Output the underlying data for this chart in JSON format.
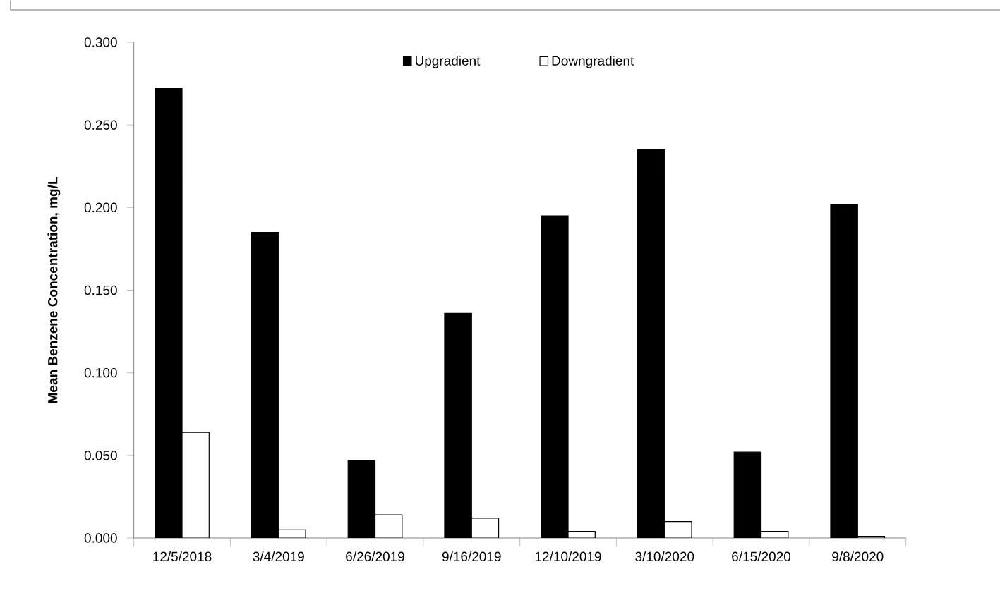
{
  "chart_data": {
    "type": "bar",
    "ylabel": "Mean Benzene Concentration, mg/L",
    "categories": [
      "12/5/2018",
      "3/4/2019",
      "6/26/2019",
      "9/16/2019",
      "12/10/2019",
      "3/10/2020",
      "6/15/2020",
      "9/8/2020"
    ],
    "series": [
      {
        "name": "Upgradient",
        "color": "#000000",
        "values": [
          0.272,
          0.185,
          0.047,
          0.136,
          0.195,
          0.235,
          0.052,
          0.202
        ]
      },
      {
        "name": "Downgradient",
        "color": "#ffffff",
        "values": [
          0.064,
          0.005,
          0.014,
          0.012,
          0.004,
          0.01,
          0.004,
          0.001
        ]
      }
    ],
    "ylim": [
      0,
      0.3
    ],
    "yticks": [
      {
        "value": 0,
        "label": "0.000"
      },
      {
        "value": 0.05,
        "label": "0.050"
      },
      {
        "value": 0.1,
        "label": "0.100"
      },
      {
        "value": 0.15,
        "label": "0.150"
      },
      {
        "value": 0.2,
        "label": "0.200"
      },
      {
        "value": 0.25,
        "label": "0.250"
      },
      {
        "value": 0.3,
        "label": "0.300"
      }
    ],
    "grid": false,
    "legend": "top"
  }
}
